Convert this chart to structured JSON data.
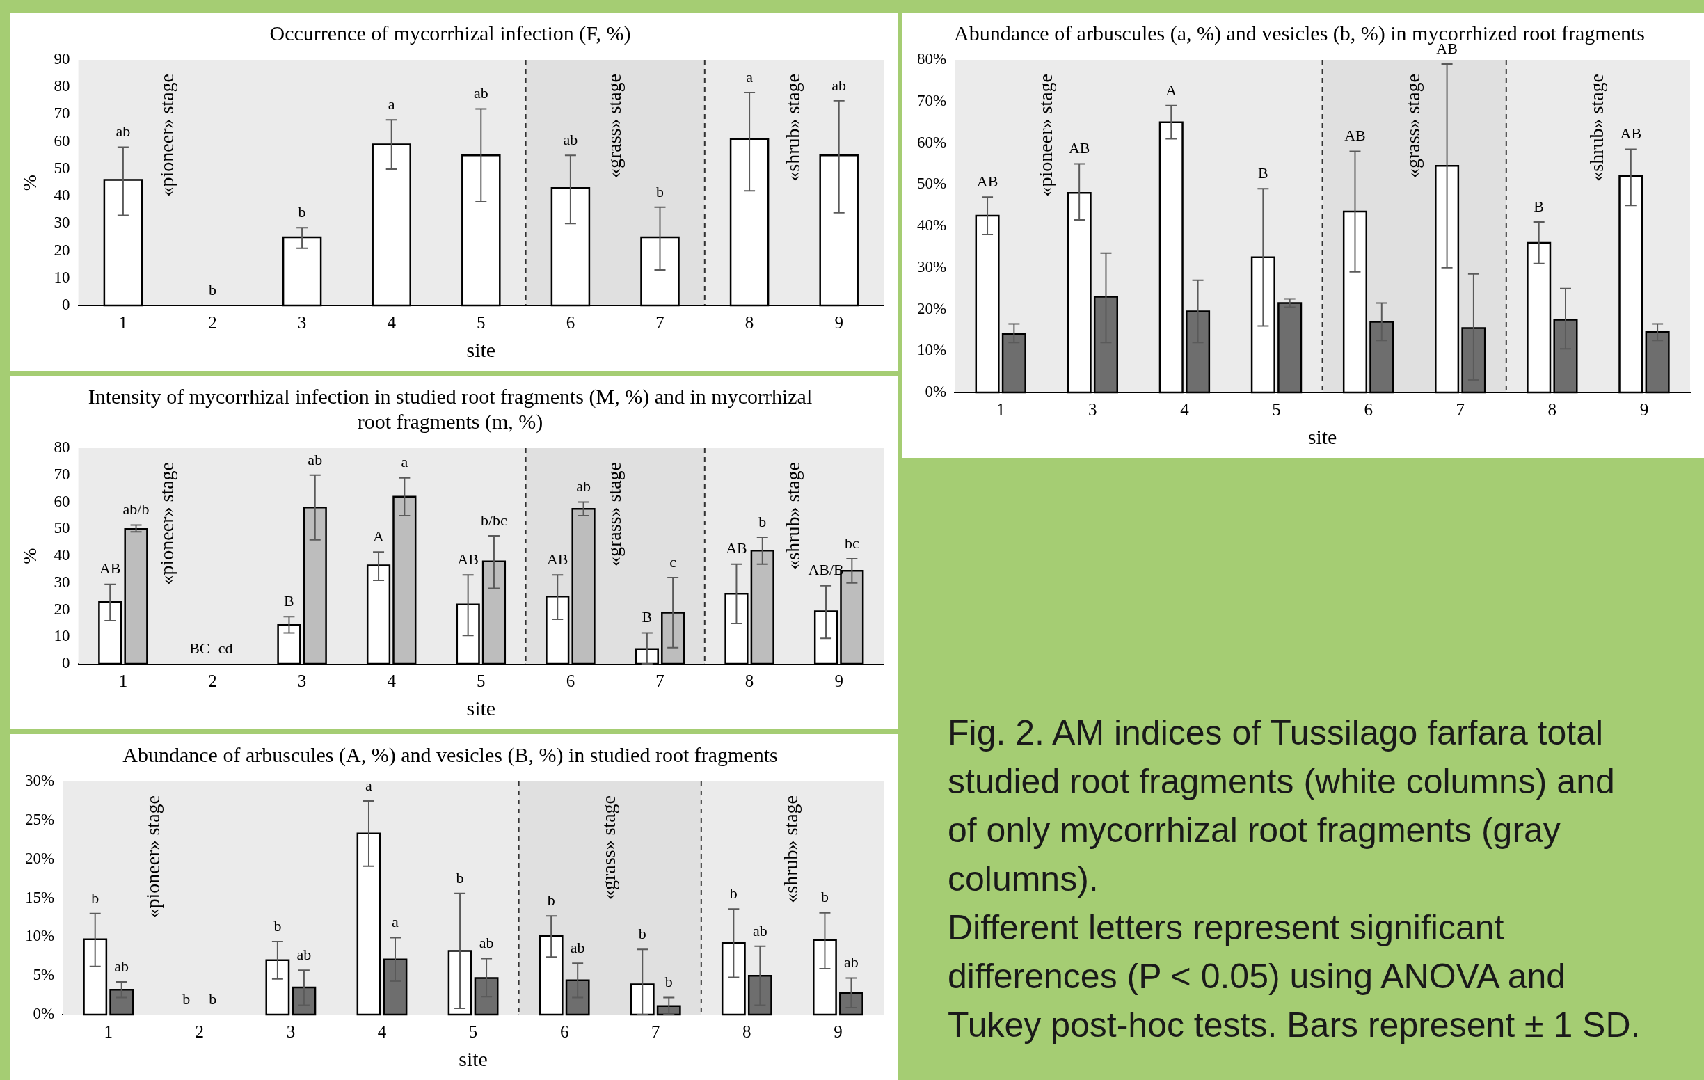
{
  "chart_data": [
    {
      "type": "bar",
      "title": "Occurrence of mycorrhizal infection (F, %)",
      "xlabel": "site",
      "ylabel": "%",
      "categories": [
        "1",
        "2",
        "3",
        "4",
        "5",
        "6",
        "7",
        "8",
        "9"
      ],
      "ylim": [
        0,
        90
      ],
      "yticks": [
        0,
        10,
        20,
        30,
        40,
        50,
        60,
        70,
        80,
        90
      ],
      "series": [
        {
          "color": "#ffffff",
          "values": [
            46,
            0,
            25,
            59,
            55,
            43,
            25,
            61,
            55
          ],
          "errors": [
            [
              33,
              58
            ],
            null,
            [
              21,
              28.5
            ],
            [
              50,
              68
            ],
            [
              38,
              72
            ],
            [
              30,
              55
            ],
            [
              13,
              36
            ],
            [
              42,
              78
            ],
            [
              34,
              75
            ]
          ]
        }
      ],
      "bands": [
        {
          "axis": "x",
          "from": "1",
          "to": "5",
          "label": "«pioneer» stage",
          "color": "#ebebeb"
        },
        {
          "axis": "x",
          "from": "6",
          "to": "7",
          "label": "«grass» stage",
          "color": "#e0e0e0"
        },
        {
          "axis": "x",
          "from": "8",
          "to": "9",
          "label": "«shrub» stage",
          "color": "#ebebeb"
        }
      ],
      "annotations": [
        "ab",
        "b",
        "b",
        "a",
        "ab",
        "ab",
        "b",
        "a",
        "ab"
      ]
    },
    {
      "type": "bar",
      "title": "Intensity of mycorrhizal infection in studied root fragments (M, %) and in mycorrhizal root fragments (m, %)",
      "xlabel": "site",
      "ylabel": "%",
      "categories": [
        "1",
        "2",
        "3",
        "4",
        "5",
        "6",
        "7",
        "8",
        "9"
      ],
      "ylim": [
        0,
        80
      ],
      "yticks": [
        0,
        10,
        20,
        30,
        40,
        50,
        60,
        70,
        80
      ],
      "series": [
        {
          "color": "#ffffff",
          "values": [
            23,
            0,
            14.5,
            36.5,
            22,
            25,
            5.5,
            26,
            19.5
          ],
          "errors": [
            [
              16,
              29.5
            ],
            null,
            [
              11.5,
              17.5
            ],
            [
              31,
              41.5
            ],
            [
              10.5,
              33
            ],
            [
              16.5,
              33
            ],
            [
              0,
              11.5
            ],
            [
              15,
              37
            ],
            [
              9.5,
              29
            ]
          ]
        },
        {
          "color": "#bdbdbd",
          "values": [
            50,
            0,
            58,
            62,
            38,
            57.5,
            19,
            42,
            34.5
          ],
          "errors": [
            [
              49,
              51.5
            ],
            null,
            [
              46,
              70
            ],
            [
              55,
              69
            ],
            [
              28,
              47.5
            ],
            [
              55,
              60
            ],
            [
              6,
              32
            ],
            [
              37,
              47
            ],
            [
              30,
              39
            ]
          ]
        }
      ],
      "bands": [
        {
          "axis": "x",
          "from": "1",
          "to": "5",
          "label": "«pioneer» stage",
          "color": "#ebebeb"
        },
        {
          "axis": "x",
          "from": "6",
          "to": "7",
          "label": "«grass» stage",
          "color": "#e0e0e0"
        },
        {
          "axis": "x",
          "from": "8",
          "to": "9",
          "label": "«shrub» stage",
          "color": "#ebebeb"
        }
      ],
      "annotations": [
        "AB",
        "ab/b",
        "BC",
        "cd",
        "B",
        "ab",
        "A",
        "a",
        "AB",
        "b/bc",
        "AB",
        "ab",
        "B",
        "c",
        "AB",
        "b",
        "AB/B",
        "bc"
      ]
    },
    {
      "type": "bar",
      "title": "Abundance of arbuscules (A, %) and vesicles (B, %) in studied root fragments",
      "xlabel": "site",
      "categories": [
        "1",
        "2",
        "3",
        "4",
        "5",
        "6",
        "7",
        "8",
        "9"
      ],
      "ylim": [
        0,
        30
      ],
      "yticks": [
        {
          "value": 0,
          "label": "0%"
        },
        {
          "value": 5,
          "label": "5%"
        },
        {
          "value": 10,
          "label": "10%"
        },
        {
          "value": 15,
          "label": "15%"
        },
        {
          "value": 20,
          "label": "20%"
        },
        {
          "value": 25,
          "label": "25%"
        },
        {
          "value": 30,
          "label": "30%"
        }
      ],
      "series": [
        {
          "color": "#ffffff",
          "values": [
            9.7,
            0,
            7,
            23.3,
            8.2,
            10.1,
            3.9,
            9.2,
            9.6
          ],
          "errors": [
            [
              6.2,
              13
            ],
            null,
            [
              4.6,
              9.4
            ],
            [
              19.1,
              27.5
            ],
            [
              0.8,
              15.6
            ],
            [
              7.4,
              12.7
            ],
            [
              0,
              8.4
            ],
            [
              4.8,
              13.6
            ],
            [
              5.9,
              13.1
            ]
          ]
        },
        {
          "color": "#6e6e6e",
          "values": [
            3.2,
            0,
            3.5,
            7.1,
            4.7,
            4.4,
            1.1,
            5,
            2.8
          ],
          "errors": [
            [
              2.2,
              4.2
            ],
            null,
            [
              1.2,
              5.7
            ],
            [
              4.3,
              9.9
            ],
            [
              2.3,
              7.2
            ],
            [
              2.2,
              6.6
            ],
            [
              0,
              2.2
            ],
            [
              1.2,
              8.8
            ],
            [
              0.9,
              4.7
            ]
          ]
        }
      ],
      "bands": [
        {
          "axis": "x",
          "from": "1",
          "to": "5",
          "label": "«pioneer» stage",
          "color": "#ebebeb"
        },
        {
          "axis": "x",
          "from": "6",
          "to": "7",
          "label": "«grass» stage",
          "color": "#e0e0e0"
        },
        {
          "axis": "x",
          "from": "8",
          "to": "9",
          "label": "«shrub» stage",
          "color": "#ebebeb"
        }
      ],
      "annotations": [
        "b",
        "ab",
        "b",
        "b",
        "b",
        "ab",
        "a",
        "a",
        "b",
        "ab",
        "b",
        "ab",
        "b",
        "b",
        "b",
        "ab",
        "b",
        "ab"
      ]
    },
    {
      "type": "bar",
      "title": "Abundance of arbuscules (a, %) and vesicles (b, %) in mycorrhized root fragments",
      "xlabel": "site",
      "categories": [
        "1",
        "3",
        "4",
        "5",
        "6",
        "7",
        "8",
        "9"
      ],
      "ylim": [
        0,
        80
      ],
      "yticks": [
        {
          "value": 0,
          "label": "0%"
        },
        {
          "value": 10,
          "label": "10%"
        },
        {
          "value": 20,
          "label": "20%"
        },
        {
          "value": 30,
          "label": "30%"
        },
        {
          "value": 40,
          "label": "40%"
        },
        {
          "value": 50,
          "label": "50%"
        },
        {
          "value": 60,
          "label": "60%"
        },
        {
          "value": 70,
          "label": "70%"
        },
        {
          "value": 80,
          "label": "80%"
        }
      ],
      "series": [
        {
          "color": "#ffffff",
          "values": [
            42.5,
            48,
            65,
            32.5,
            43.5,
            54.5,
            36,
            52
          ],
          "errors": [
            [
              38,
              47
            ],
            [
              41.5,
              55
            ],
            [
              61,
              69
            ],
            [
              16,
              49
            ],
            [
              29,
              58
            ],
            [
              30,
              79
            ],
            [
              31,
              41
            ],
            [
              45,
              58.5
            ]
          ]
        },
        {
          "color": "#6e6e6e",
          "values": [
            14,
            23,
            19.5,
            21.5,
            17,
            15.5,
            17.5,
            14.5
          ],
          "errors": [
            [
              12,
              16.5
            ],
            [
              12,
              33.5
            ],
            [
              12,
              27
            ],
            [
              20.5,
              22.5
            ],
            [
              12.5,
              21.5
            ],
            [
              3,
              28.5
            ],
            [
              10.5,
              25
            ],
            [
              12.5,
              16.5
            ]
          ]
        }
      ],
      "bands": [
        {
          "axis": "x",
          "from": "1",
          "to": "5",
          "label": "«pioneer» stage",
          "color": "#ebebeb"
        },
        {
          "axis": "x",
          "from": "6",
          "to": "7",
          "label": "«grass» stage",
          "color": "#e0e0e0"
        },
        {
          "axis": "x",
          "from": "8",
          "to": "9",
          "label": "«shrub» stage",
          "color": "#ebebeb"
        }
      ],
      "annotations": [
        "AB",
        "AB",
        "A",
        "B",
        "AB",
        "AB",
        "B",
        "AB"
      ]
    },
    {
      "type": "other",
      "annotations": [
        "Fig. 2. AM indices of Tussilago farfara total studied root fragments (white columns) and of only mycorrhizal root fragments (gray columns).",
        "Different letters represent significant differences (P < 0.05) using ANOVA and Tukey post-hoc tests. Bars represent ± 1 SD."
      ]
    }
  ]
}
